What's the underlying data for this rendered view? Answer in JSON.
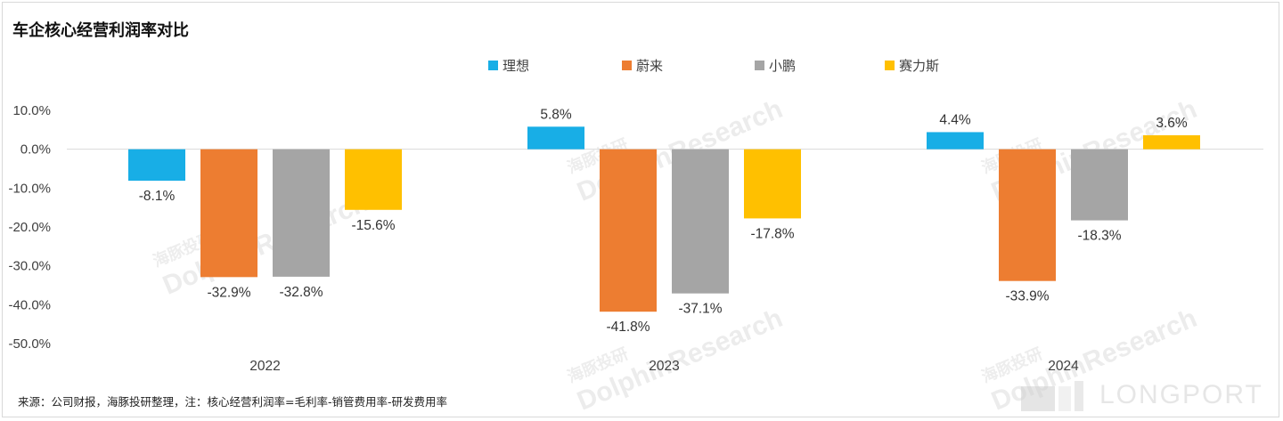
{
  "title": "车企核心经营利润率对比",
  "source": "来源：公司财报，海豚投研整理，注：核心经营利润率=毛利率-销管费用率-研发费用率",
  "watermark": {
    "cn": "海豚投研",
    "en": "DolphinResearch"
  },
  "logo": {
    "text": "LONGPORT"
  },
  "chart_data": {
    "type": "bar",
    "title": "车企核心经营利润率对比",
    "categories": [
      "2022",
      "2023",
      "2024"
    ],
    "series": [
      {
        "name": "理想",
        "color": "#18aee6",
        "values": [
          -8.1,
          5.8,
          4.4
        ]
      },
      {
        "name": "蔚来",
        "color": "#ed7d31",
        "values": [
          -32.9,
          -41.8,
          -33.9
        ]
      },
      {
        "name": "小鹏",
        "color": "#a5a5a5",
        "values": [
          -32.8,
          -37.1,
          -18.3
        ]
      },
      {
        "name": "赛力斯",
        "color": "#ffc000",
        "values": [
          -15.6,
          -17.8,
          3.6
        ]
      }
    ],
    "value_format": "0.0%",
    "ylim": [
      -50,
      10
    ],
    "yticks": [
      "10.0%",
      "0.0%",
      "-10.0%",
      "-20.0%",
      "-30.0%",
      "-40.0%",
      "-50.0%"
    ],
    "legend": "top-center",
    "grid": false
  }
}
